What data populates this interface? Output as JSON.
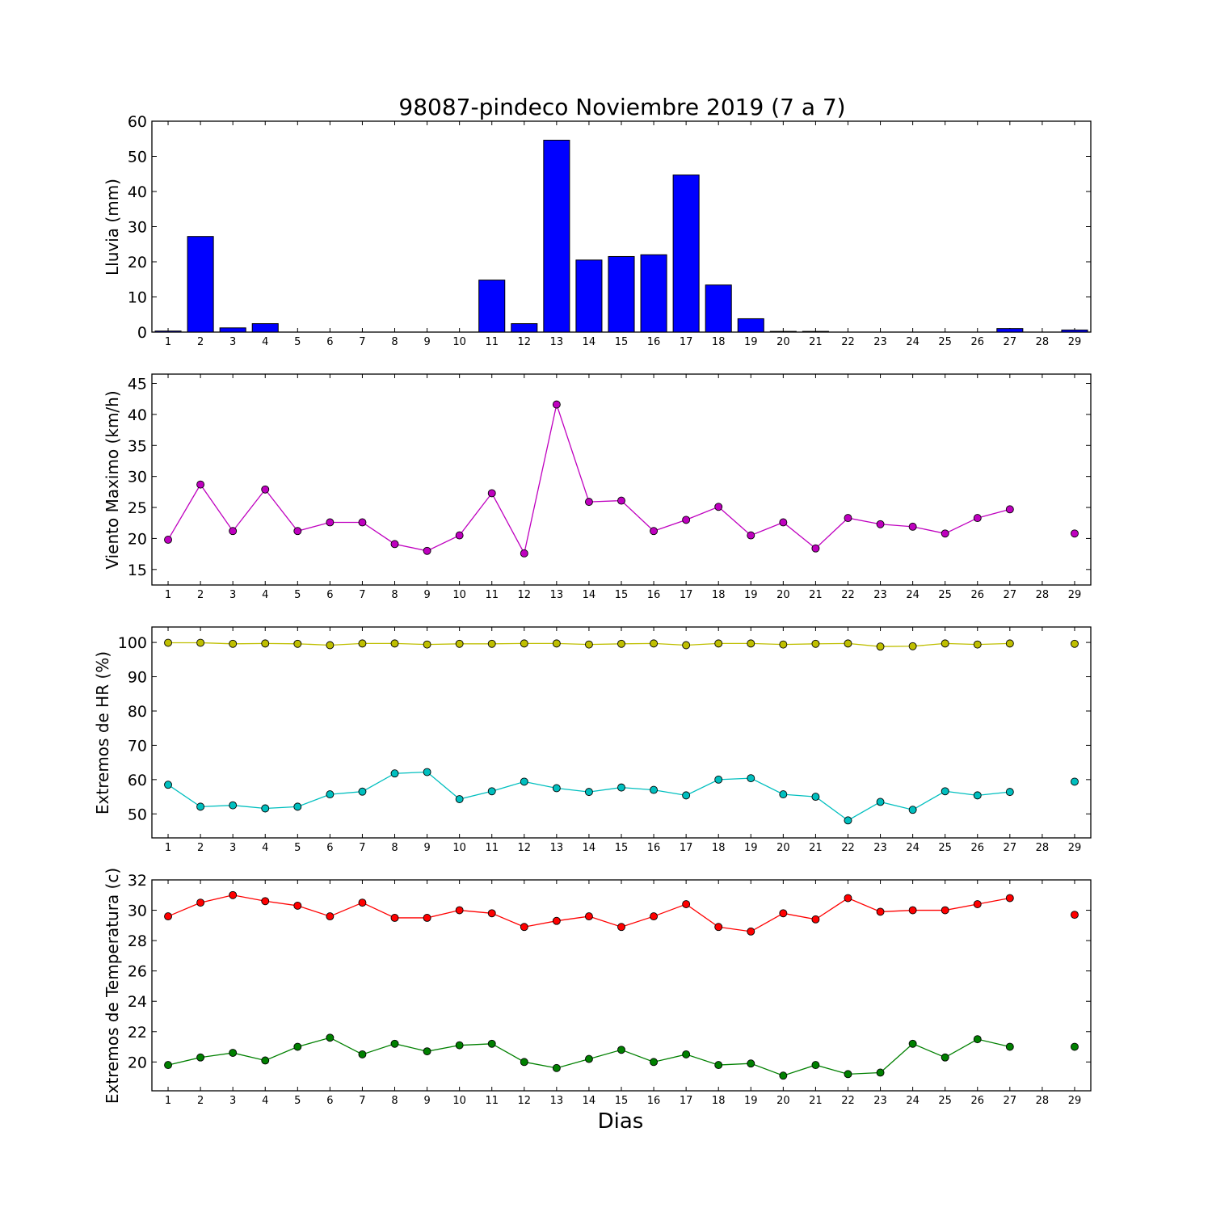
{
  "title": "98087-pindeco Noviembre 2019  (7 a 7)",
  "xlabel": "Dias",
  "colors": {
    "bars": "#0000ff",
    "wind": "#bf00bf",
    "hr_max": "#bfbf00",
    "hr_min": "#00bfbf",
    "temp_max": "#ff0000",
    "temp_min": "#008000"
  },
  "chart_data": [
    {
      "type": "bar",
      "ylabel": "Lluvia (mm)",
      "ylim": [
        0,
        60
      ],
      "yticks": [
        0,
        10,
        20,
        30,
        40,
        50,
        60
      ],
      "xlim": [
        0.5,
        29.5
      ],
      "categories": [
        "1",
        "2",
        "3",
        "4",
        "5",
        "6",
        "7",
        "8",
        "9",
        "10",
        "11",
        "12",
        "13",
        "14",
        "15",
        "16",
        "17",
        "18",
        "19",
        "20",
        "21",
        "22",
        "23",
        "24",
        "25",
        "26",
        "27",
        "28",
        "29"
      ],
      "series": [
        {
          "values": [
            0.3,
            27.2,
            1.2,
            2.4,
            0,
            0,
            0,
            0,
            0,
            0,
            14.8,
            2.4,
            54.6,
            20.5,
            21.5,
            22,
            44.7,
            13.4,
            3.8,
            0.2,
            0.2,
            0,
            0,
            0,
            0,
            0,
            1,
            0,
            0.6
          ]
        }
      ]
    },
    {
      "type": "line",
      "ylabel": "Viento Maximo (km/h)",
      "ylim": [
        12.5,
        46.5
      ],
      "yticks": [
        15,
        20,
        25,
        30,
        35,
        40,
        45
      ],
      "xlim": [
        0.5,
        29.5
      ],
      "categories": [
        "1",
        "2",
        "3",
        "4",
        "5",
        "6",
        "7",
        "8",
        "9",
        "10",
        "11",
        "12",
        "13",
        "14",
        "15",
        "16",
        "17",
        "18",
        "19",
        "20",
        "21",
        "22",
        "23",
        "24",
        "25",
        "26",
        "27",
        "28",
        "29"
      ],
      "series": [
        {
          "color_key": "wind",
          "values": [
            19.8,
            28.7,
            21.2,
            27.9,
            21.2,
            22.6,
            22.6,
            19.1,
            18,
            20.5,
            27.3,
            17.6,
            41.6,
            25.9,
            26.1,
            21.2,
            23,
            25.1,
            20.5,
            22.6,
            18.4,
            23.3,
            22.3,
            21.9,
            20.8,
            23.3,
            24.7,
            null,
            20.8
          ]
        }
      ]
    },
    {
      "type": "line",
      "ylabel": "Extremos de HR (%)",
      "ylim": [
        43,
        104.5
      ],
      "yticks": [
        50,
        60,
        70,
        80,
        90,
        100
      ],
      "xlim": [
        0.5,
        29.5
      ],
      "categories": [
        "1",
        "2",
        "3",
        "4",
        "5",
        "6",
        "7",
        "8",
        "9",
        "10",
        "11",
        "12",
        "13",
        "14",
        "15",
        "16",
        "17",
        "18",
        "19",
        "20",
        "21",
        "22",
        "23",
        "24",
        "25",
        "26",
        "27",
        "28",
        "29"
      ],
      "series": [
        {
          "color_key": "hr_max",
          "values": [
            99.9,
            99.9,
            99.6,
            99.7,
            99.6,
            99.2,
            99.7,
            99.7,
            99.4,
            99.6,
            99.6,
            99.7,
            99.7,
            99.4,
            99.6,
            99.7,
            99.2,
            99.7,
            99.7,
            99.4,
            99.6,
            99.7,
            98.8,
            98.9,
            99.7,
            99.4,
            99.7,
            null,
            99.6
          ]
        },
        {
          "color_key": "hr_min",
          "values": [
            58.5,
            52.1,
            52.5,
            51.6,
            52.1,
            55.7,
            56.5,
            61.8,
            62.2,
            54.3,
            56.6,
            59.4,
            57.5,
            56.4,
            57.7,
            57,
            55.4,
            60,
            60.4,
            55.7,
            55,
            48.1,
            53.5,
            51.2,
            56.6,
            55.4,
            56.4,
            null,
            59.4
          ]
        }
      ]
    },
    {
      "type": "line",
      "ylabel": "Extremos de Temperatura (c)",
      "ylim": [
        18.1,
        32
      ],
      "yticks": [
        20,
        22,
        24,
        26,
        28,
        30,
        32
      ],
      "xlim": [
        0.5,
        29.5
      ],
      "categories": [
        "1",
        "2",
        "3",
        "4",
        "5",
        "6",
        "7",
        "8",
        "9",
        "10",
        "11",
        "12",
        "13",
        "14",
        "15",
        "16",
        "17",
        "18",
        "19",
        "20",
        "21",
        "22",
        "23",
        "24",
        "25",
        "26",
        "27",
        "28",
        "29"
      ],
      "series": [
        {
          "color_key": "temp_max",
          "values": [
            29.6,
            30.5,
            31,
            30.6,
            30.3,
            29.6,
            30.5,
            29.5,
            29.5,
            30,
            29.8,
            28.9,
            29.3,
            29.6,
            28.9,
            29.6,
            30.4,
            28.9,
            28.6,
            29.8,
            29.4,
            30.8,
            29.9,
            30,
            30,
            30.4,
            30.8,
            null,
            29.7
          ]
        },
        {
          "color_key": "temp_min",
          "values": [
            19.8,
            20.3,
            20.6,
            20.1,
            21,
            21.6,
            20.5,
            21.2,
            20.7,
            21.1,
            21.2,
            20,
            19.6,
            20.2,
            20.8,
            20,
            20.5,
            19.8,
            19.9,
            19.1,
            19.8,
            19.2,
            19.3,
            21.2,
            20.3,
            21.5,
            21,
            null,
            21
          ]
        }
      ]
    }
  ]
}
